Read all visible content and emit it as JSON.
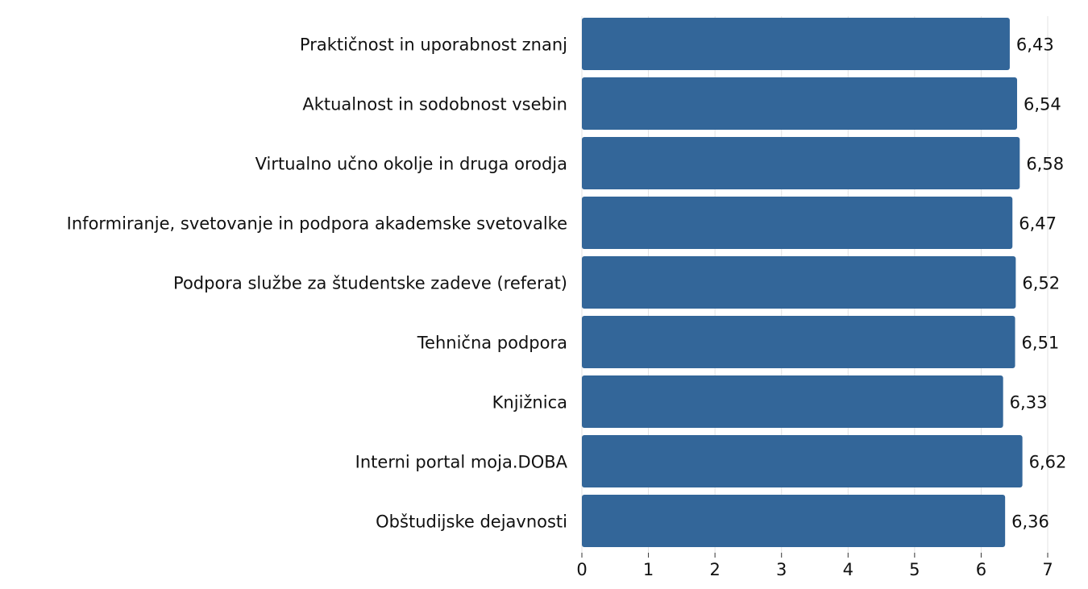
{
  "chart_data": {
    "type": "bar",
    "orientation": "horizontal",
    "categories": [
      "Praktičnost in uporabnost znanj",
      "Aktualnost in sodobnost vsebin",
      "Virtualno učno okolje in druga orodja",
      "Informiranje, svetovanje in podpora akademske svetovalke",
      "Podpora službe za študentske zadeve (referat)",
      "Tehnična podpora",
      "Knjižnica",
      "Interni portal moja.DOBA",
      "Obštudijske dejavnosti"
    ],
    "values": [
      6.43,
      6.54,
      6.58,
      6.47,
      6.52,
      6.51,
      6.33,
      6.62,
      6.36
    ],
    "value_labels": [
      "6,43",
      "6,54",
      "6,58",
      "6,47",
      "6,52",
      "6,51",
      "6,33",
      "6,62",
      "6,36"
    ],
    "xlim": [
      0,
      7
    ],
    "xticks": [
      "0",
      "1",
      "2",
      "3",
      "4",
      "5",
      "6",
      "7"
    ],
    "grid": true,
    "bar_color": "#336699",
    "title": "",
    "xlabel": "",
    "ylabel": ""
  }
}
